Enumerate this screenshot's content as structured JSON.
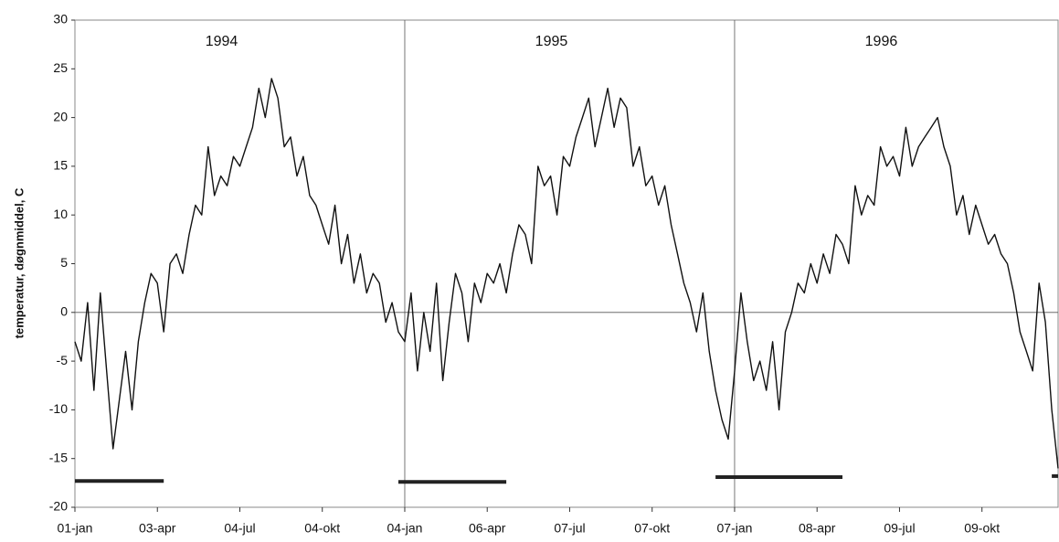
{
  "chart_data": {
    "type": "line",
    "ylabel": "temperatur, døgnmiddel, C",
    "year_labels": [
      "1994",
      "1995",
      "1996"
    ],
    "categories": [
      "01-jan",
      null,
      null,
      null,
      null,
      null,
      null,
      null,
      null,
      null,
      null,
      null,
      null,
      "03-apr",
      null,
      null,
      null,
      null,
      null,
      null,
      null,
      null,
      null,
      null,
      null,
      null,
      "04-jul",
      null,
      null,
      null,
      null,
      null,
      null,
      null,
      null,
      null,
      null,
      null,
      null,
      "04-okt",
      null,
      null,
      null,
      null,
      null,
      null,
      null,
      null,
      null,
      null,
      null,
      null,
      "04-jan",
      null,
      null,
      null,
      null,
      null,
      null,
      null,
      null,
      null,
      null,
      null,
      null,
      "06-apr",
      null,
      null,
      null,
      null,
      null,
      null,
      null,
      null,
      null,
      null,
      null,
      null,
      "07-jul",
      null,
      null,
      null,
      null,
      null,
      null,
      null,
      null,
      null,
      null,
      null,
      null,
      "07-okt",
      null,
      null,
      null,
      null,
      null,
      null,
      null,
      null,
      null,
      null,
      null,
      null,
      "07-jan",
      null,
      null,
      null,
      null,
      null,
      null,
      null,
      null,
      null,
      null,
      null,
      null,
      "08-apr",
      null,
      null,
      null,
      null,
      null,
      null,
      null,
      null,
      null,
      null,
      null,
      null,
      "09-jul",
      null,
      null,
      null,
      null,
      null,
      null,
      null,
      null,
      null,
      null,
      null,
      null,
      "09-okt",
      null,
      null,
      null,
      null,
      null,
      null,
      null,
      null,
      null,
      null,
      null,
      null
    ],
    "series": [
      {
        "color": "#111111",
        "width": 1.4,
        "values": [
          -3,
          -5,
          1,
          -8,
          2,
          -6,
          -14,
          -9,
          -4,
          -10,
          -3,
          1,
          4,
          3,
          -2,
          5,
          6,
          4,
          8,
          11,
          10,
          17,
          12,
          14,
          13,
          16,
          15,
          17,
          19,
          23,
          20,
          24,
          22,
          17,
          18,
          14,
          16,
          12,
          11,
          9,
          7,
          11,
          5,
          8,
          3,
          6,
          2,
          4,
          3,
          -1,
          1,
          -2,
          -3,
          2,
          -6,
          0,
          -4,
          3,
          -7,
          -1,
          4,
          2,
          -3,
          3,
          1,
          4,
          3,
          5,
          2,
          6,
          9,
          8,
          5,
          15,
          13,
          14,
          10,
          16,
          15,
          18,
          20,
          22,
          17,
          20,
          23,
          19,
          22,
          21,
          15,
          17,
          13,
          14,
          11,
          13,
          9,
          6,
          3,
          1,
          -2,
          2,
          -4,
          -8,
          -11,
          -13,
          -6,
          2,
          -3,
          -7,
          -5,
          -8,
          -3,
          -10,
          -2,
          0,
          3,
          2,
          5,
          3,
          6,
          4,
          8,
          7,
          5,
          13,
          10,
          12,
          11,
          17,
          15,
          16,
          14,
          19,
          15,
          17,
          18,
          19,
          20,
          17,
          15,
          10,
          12,
          8,
          11,
          9,
          7,
          8,
          6,
          5,
          2,
          -2,
          -4,
          -6,
          3,
          -1,
          -10,
          -16
        ]
      },
      {
        "color": "#222222",
        "width": 4,
        "values": [
          -17.3,
          -17.3,
          -17.3,
          -17.3,
          -17.3,
          -17.3,
          -17.3,
          -17.3,
          -17.3,
          -17.3,
          -17.3,
          -17.3,
          -17.3,
          -17.3,
          -17.3,
          null,
          null,
          null,
          null,
          null,
          null,
          null,
          null,
          null,
          null,
          null,
          null,
          null,
          null,
          null,
          null,
          null,
          null,
          null,
          null,
          null,
          null,
          null,
          null,
          null,
          null,
          null,
          null,
          null,
          null,
          null,
          null,
          null,
          null,
          null,
          null,
          -17.4,
          -17.4,
          -17.4,
          -17.4,
          -17.4,
          -17.4,
          -17.4,
          -17.4,
          -17.4,
          -17.4,
          -17.4,
          -17.4,
          -17.4,
          -17.4,
          -17.4,
          -17.4,
          -17.4,
          -17.4,
          null,
          null,
          null,
          null,
          null,
          null,
          null,
          null,
          null,
          null,
          null,
          null,
          null,
          null,
          null,
          null,
          null,
          null,
          null,
          null,
          null,
          null,
          null,
          null,
          null,
          null,
          null,
          null,
          null,
          null,
          null,
          null,
          -16.9,
          -16.9,
          -16.9,
          -16.9,
          -16.9,
          -16.9,
          -16.9,
          -16.9,
          -16.9,
          -16.9,
          -16.9,
          -16.9,
          -16.9,
          -16.9,
          -16.9,
          -16.9,
          -16.9,
          -16.9,
          -16.9,
          -16.9,
          -16.9,
          null,
          null,
          null,
          null,
          null,
          null,
          null,
          null,
          null,
          null,
          null,
          null,
          null,
          null,
          null,
          null,
          null,
          null,
          null,
          null,
          null,
          null,
          null,
          null,
          null,
          null,
          null,
          null,
          null,
          null,
          null,
          null,
          -16.8,
          -16.8
        ]
      }
    ],
    "ylim": [
      -20,
      30
    ],
    "yticks": [
      -20,
      -15,
      -10,
      -5,
      0,
      5,
      10,
      15,
      20,
      25,
      30
    ]
  }
}
